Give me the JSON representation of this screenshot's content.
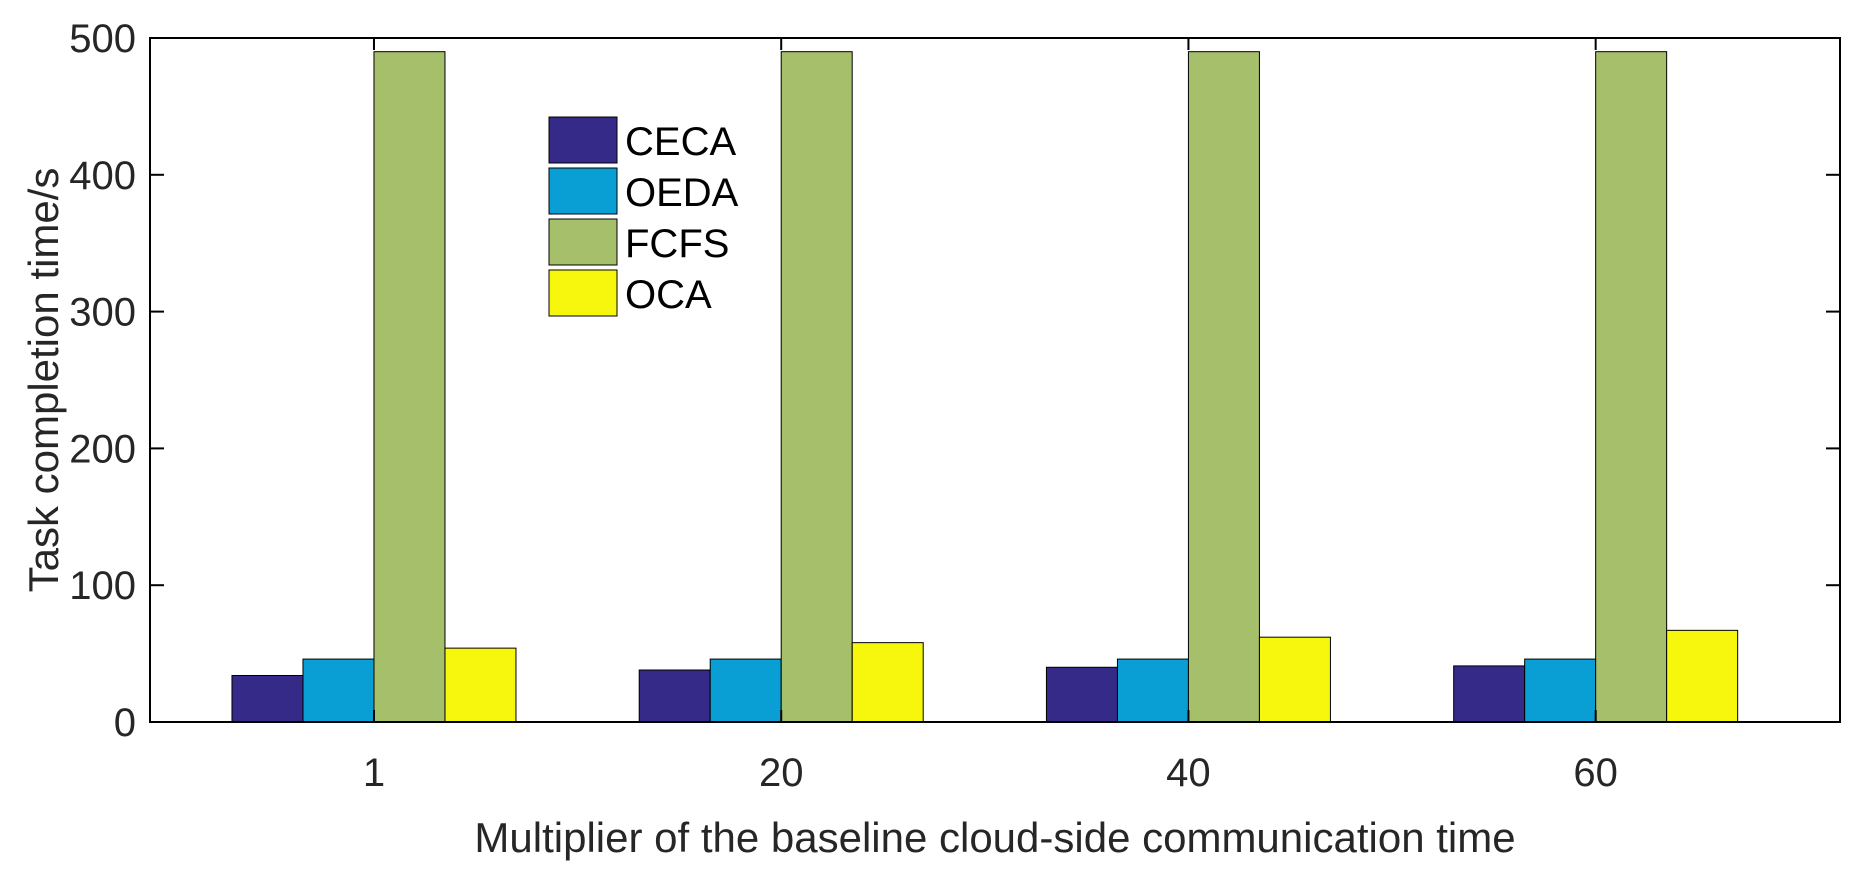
{
  "chart_data": {
    "type": "bar",
    "title": "",
    "xlabel": "Multiplier of the baseline cloud-side communication time",
    "ylabel": "Task completion time/s",
    "categories": [
      "1",
      "20",
      "40",
      "60"
    ],
    "ylim": [
      0,
      500
    ],
    "yticks": [
      "0",
      "100",
      "200",
      "300",
      "400",
      "500"
    ],
    "legend_position": "top-center",
    "grid": false,
    "series": [
      {
        "name": "CECA",
        "color": "#352A87",
        "values": [
          34,
          38,
          40,
          41
        ]
      },
      {
        "name": "OEDA",
        "color": "#0A9FD4",
        "values": [
          46,
          46,
          46,
          46
        ]
      },
      {
        "name": "FCFS",
        "color": "#A5BF6A",
        "values": [
          490,
          490,
          490,
          490
        ]
      },
      {
        "name": "OCA",
        "color": "#F7F70D",
        "values": [
          54,
          58,
          62,
          67
        ]
      }
    ]
  }
}
